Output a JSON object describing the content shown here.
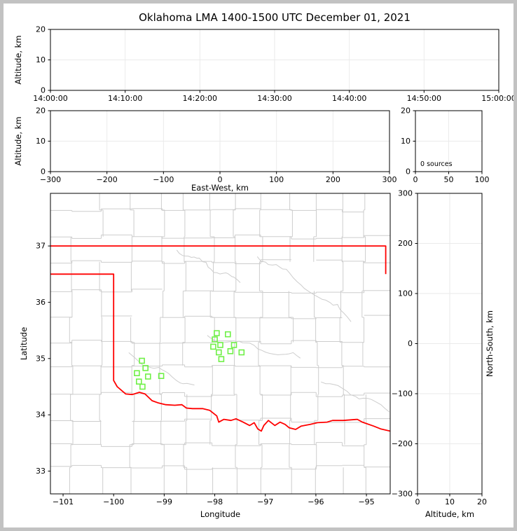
{
  "title": "Oklahoma LMA 1400-1500 UTC December 01, 2021",
  "colors": {
    "state_border": "#ff0000",
    "county_line": "#cdcdcd",
    "station_marker": "#70f048",
    "gridline": "#eaeaea",
    "axis": "#000000",
    "frame": "#c2c2c2"
  },
  "chart_data": [
    {
      "id": "alt-vs-time",
      "type": "scatter",
      "points": [],
      "ylabel": "Altitude, km",
      "xlim": [
        0,
        6
      ],
      "ylim": [
        0,
        20
      ],
      "x_ticks": [
        {
          "v": 0,
          "label": "14:00:00"
        },
        {
          "v": 1,
          "label": "14:10:00"
        },
        {
          "v": 2,
          "label": "14:20:00"
        },
        {
          "v": 3,
          "label": "14:30:00"
        },
        {
          "v": 4,
          "label": "14:40:00"
        },
        {
          "v": 5,
          "label": "14:50:00"
        },
        {
          "v": 6,
          "label": "15:00:00"
        }
      ],
      "y_ticks": [
        {
          "v": 0,
          "label": "0"
        },
        {
          "v": 10,
          "label": "10"
        },
        {
          "v": 20,
          "label": "20"
        }
      ]
    },
    {
      "id": "alt-vs-eastwest",
      "type": "scatter",
      "points": [],
      "xlabel": "East-West, km",
      "ylabel": "Altitude, km",
      "xlim": [
        -300,
        300
      ],
      "ylim": [
        0,
        20
      ],
      "x_ticks": [
        {
          "v": -300,
          "label": "−300"
        },
        {
          "v": -200,
          "label": "−200"
        },
        {
          "v": -100,
          "label": "−100"
        },
        {
          "v": 0,
          "label": "0"
        },
        {
          "v": 100,
          "label": "100"
        },
        {
          "v": 200,
          "label": "200"
        },
        {
          "v": 300,
          "label": "300"
        }
      ],
      "y_ticks": [
        {
          "v": 0,
          "label": "0"
        },
        {
          "v": 10,
          "label": "10"
        },
        {
          "v": 20,
          "label": "20"
        }
      ]
    },
    {
      "id": "source-histogram",
      "type": "histogram",
      "points": [],
      "annotation": "0 sources",
      "xlim": [
        0,
        100
      ],
      "ylim": [
        0,
        20
      ],
      "x_ticks": [
        {
          "v": 0,
          "label": "0"
        },
        {
          "v": 50,
          "label": "50"
        },
        {
          "v": 100,
          "label": "100"
        }
      ],
      "y_ticks": [
        {
          "v": 0,
          "label": "0"
        },
        {
          "v": 10,
          "label": "10"
        },
        {
          "v": 20,
          "label": "20"
        }
      ]
    },
    {
      "id": "map",
      "type": "scatter",
      "xlabel": "Longitude",
      "ylabel": "Latitude",
      "xlim": [
        -101.25,
        -94.53
      ],
      "ylim": [
        32.595,
        37.935
      ],
      "x_ticks": [
        {
          "v": -101,
          "label": "−101"
        },
        {
          "v": -100,
          "label": "−100"
        },
        {
          "v": -99,
          "label": "−99"
        },
        {
          "v": -98,
          "label": "−98"
        },
        {
          "v": -97,
          "label": "−97"
        },
        {
          "v": -96,
          "label": "−96"
        },
        {
          "v": -95,
          "label": "−95"
        }
      ],
      "y_ticks": [
        {
          "v": 33,
          "label": "33"
        },
        {
          "v": 34,
          "label": "34"
        },
        {
          "v": 35,
          "label": "35"
        },
        {
          "v": 36,
          "label": "36"
        },
        {
          "v": 37,
          "label": "37"
        }
      ],
      "stations": [
        [
          -97.96,
          35.45
        ],
        [
          -97.74,
          35.43
        ],
        [
          -98.0,
          35.34
        ],
        [
          -98.03,
          35.21
        ],
        [
          -97.89,
          35.24
        ],
        [
          -97.62,
          35.24
        ],
        [
          -97.92,
          35.11
        ],
        [
          -97.69,
          35.13
        ],
        [
          -97.47,
          35.11
        ],
        [
          -97.87,
          34.99
        ],
        [
          -99.44,
          34.96
        ],
        [
          -99.37,
          34.83
        ],
        [
          -99.54,
          34.74
        ],
        [
          -99.32,
          34.68
        ],
        [
          -99.06,
          34.69
        ],
        [
          -99.5,
          34.59
        ],
        [
          -99.43,
          34.5
        ]
      ],
      "state_border": [
        [
          [
            -101.25,
            37.0
          ],
          [
            -94.618,
            37.0
          ],
          [
            -94.618,
            36.5
          ]
        ],
        [
          [
            -101.25,
            36.5
          ],
          [
            -100.0,
            36.5
          ],
          [
            -100.0,
            34.61
          ],
          [
            -99.93,
            34.5
          ],
          [
            -99.76,
            34.37
          ],
          [
            -99.63,
            34.36
          ],
          [
            -99.49,
            34.4
          ],
          [
            -99.38,
            34.37
          ],
          [
            -99.24,
            34.25
          ],
          [
            -99.11,
            34.21
          ],
          [
            -98.97,
            34.18
          ],
          [
            -98.79,
            34.17
          ],
          [
            -98.65,
            34.18
          ],
          [
            -98.56,
            34.12
          ],
          [
            -98.44,
            34.11
          ],
          [
            -98.24,
            34.11
          ],
          [
            -98.1,
            34.08
          ],
          [
            -97.96,
            33.98
          ],
          [
            -97.92,
            33.87
          ],
          [
            -97.82,
            33.92
          ],
          [
            -97.68,
            33.9
          ],
          [
            -97.58,
            33.93
          ],
          [
            -97.44,
            33.87
          ],
          [
            -97.31,
            33.81
          ],
          [
            -97.22,
            33.86
          ],
          [
            -97.15,
            33.75
          ],
          [
            -97.08,
            33.71
          ],
          [
            -97.03,
            33.81
          ],
          [
            -96.94,
            33.9
          ],
          [
            -96.81,
            33.81
          ],
          [
            -96.71,
            33.87
          ],
          [
            -96.61,
            33.83
          ],
          [
            -96.53,
            33.77
          ],
          [
            -96.4,
            33.74
          ],
          [
            -96.29,
            33.8
          ],
          [
            -96.11,
            33.83
          ],
          [
            -95.97,
            33.86
          ],
          [
            -95.78,
            33.87
          ],
          [
            -95.67,
            33.9
          ],
          [
            -95.46,
            33.9
          ],
          [
            -95.18,
            33.92
          ],
          [
            -95.08,
            33.87
          ],
          [
            -94.86,
            33.8
          ],
          [
            -94.72,
            33.75
          ],
          [
            -94.53,
            33.71
          ]
        ]
      ]
    },
    {
      "id": "ns-vs-alt",
      "type": "scatter",
      "points": [],
      "xlabel": "Altitude, km",
      "ylabel_right": "North-South, km",
      "xlim": [
        0,
        20
      ],
      "ylim": [
        -300,
        300
      ],
      "x_ticks": [
        {
          "v": 0,
          "label": "0"
        },
        {
          "v": 10,
          "label": "10"
        },
        {
          "v": 20,
          "label": "20"
        }
      ],
      "y_ticks": [
        {
          "v": -300,
          "label": "−300"
        },
        {
          "v": -200,
          "label": "−200"
        },
        {
          "v": -100,
          "label": "−100"
        },
        {
          "v": 0,
          "label": "0"
        },
        {
          "v": 100,
          "label": "100"
        },
        {
          "v": 200,
          "label": "200"
        },
        {
          "v": 300,
          "label": "300"
        }
      ]
    }
  ]
}
